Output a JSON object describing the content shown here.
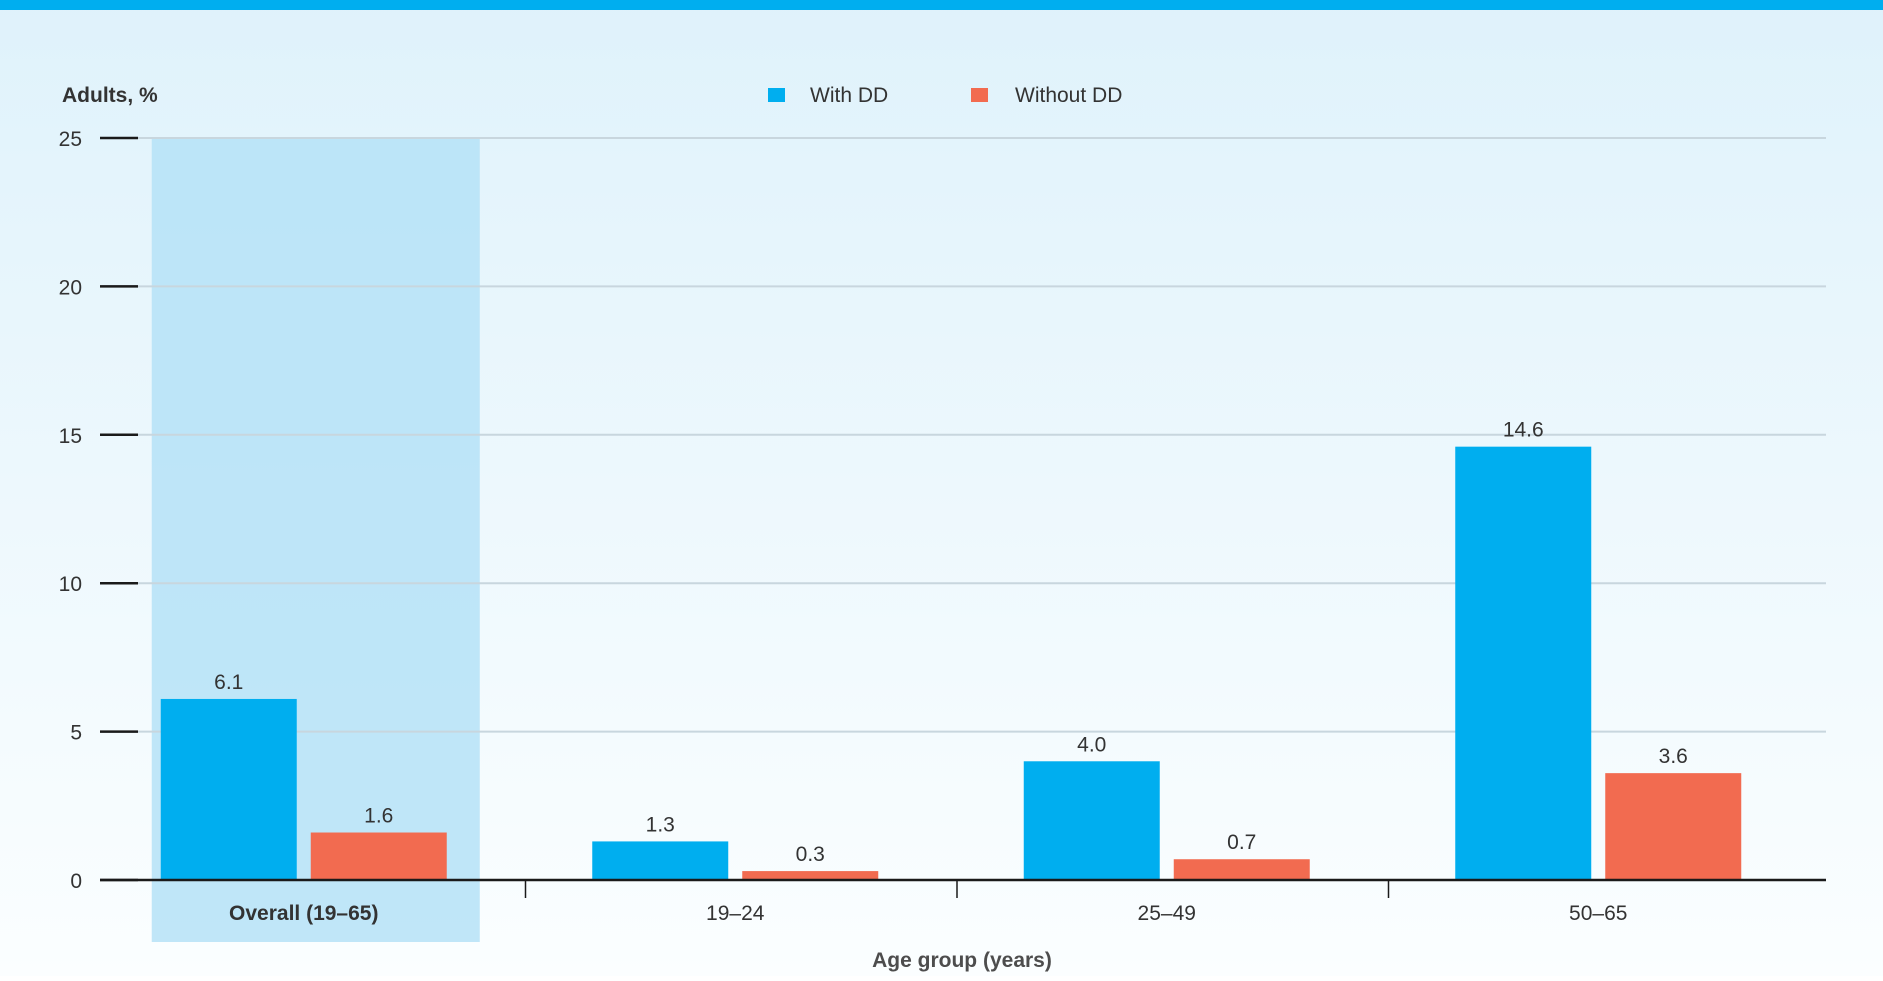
{
  "chart_data": {
    "type": "bar",
    "ylabel": "Adults, %",
    "xlabel": "Age group (years)",
    "ylim": [
      0,
      25
    ],
    "yticks": [
      0,
      5,
      10,
      15,
      20,
      25
    ],
    "grid": true,
    "legend_position": "top-center",
    "categories": [
      "Overall (19–65)",
      "19–24",
      "25–49",
      "50–65"
    ],
    "highlighted_category": "Overall (19–65)",
    "series": [
      {
        "name": "With DD",
        "color": "#00aeef",
        "values": [
          6.1,
          1.3,
          4.0,
          14.6
        ]
      },
      {
        "name": "Without DD",
        "color": "#f26b50",
        "values": [
          1.6,
          0.3,
          0.7,
          3.6
        ]
      }
    ],
    "data_labels": [
      [
        "6.1",
        "1.3",
        "4.0",
        "14.6"
      ],
      [
        "1.6",
        "0.3",
        "0.7",
        "3.6"
      ]
    ]
  },
  "colors": {
    "accent_top_bar": "#00aeef",
    "highlight_band": "#b5e2f7",
    "axis": "#1a1a1a",
    "gridline": "#c8d6de",
    "text": "#333333"
  }
}
